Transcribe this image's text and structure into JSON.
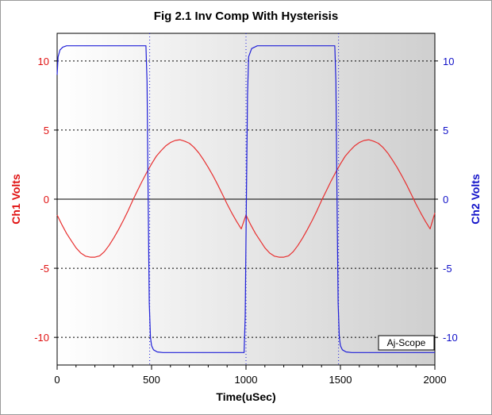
{
  "chart_data": {
    "type": "line",
    "title": "Fig 2.1 Inv Comp With Hysterisis",
    "xlabel": "Time(uSec)",
    "ylabel_left": "Ch1 Volts",
    "ylabel_right": "Ch2 Volts",
    "xlim": [
      0,
      2000
    ],
    "ylim": [
      -12,
      12
    ],
    "x_ticks": [
      0,
      500,
      1000,
      1500,
      2000
    ],
    "y_ticks": [
      10,
      5,
      0,
      -5,
      -10
    ],
    "y_tick_labels_left": [
      "10",
      "5",
      "0",
      "-5",
      "-10"
    ],
    "y_tick_labels_right": [
      "10",
      "5",
      "0",
      "-5",
      "-10"
    ],
    "vertical_markers": [
      490,
      1000,
      1490
    ],
    "grid": "dotted",
    "series": [
      {
        "name": "Ch1",
        "color": "#e83030",
        "x": [
          0,
          25,
          50,
          75,
          100,
          125,
          150,
          175,
          200,
          225,
          250,
          275,
          300,
          325,
          350,
          375,
          400,
          425,
          450,
          475,
          500,
          525,
          550,
          575,
          600,
          625,
          650,
          675,
          700,
          725,
          750,
          775,
          800,
          825,
          850,
          875,
          900,
          925,
          950,
          975,
          1000,
          1025,
          1050,
          1075,
          1100,
          1125,
          1150,
          1175,
          1200,
          1225,
          1250,
          1275,
          1300,
          1325,
          1350,
          1375,
          1400,
          1425,
          1450,
          1475,
          1500,
          1525,
          1550,
          1575,
          1600,
          1625,
          1650,
          1675,
          1700,
          1725,
          1750,
          1775,
          1800,
          1825,
          1850,
          1875,
          1900,
          1925,
          1950,
          1975,
          2000
        ],
        "values": [
          -1.15,
          -1.85,
          -2.48,
          -3.0,
          -3.52,
          -3.9,
          -4.12,
          -4.2,
          -4.2,
          -4.1,
          -3.8,
          -3.35,
          -2.8,
          -2.2,
          -1.55,
          -0.85,
          -0.1,
          0.6,
          1.3,
          1.95,
          2.55,
          3.1,
          3.5,
          3.85,
          4.1,
          4.25,
          4.3,
          4.2,
          4.05,
          3.75,
          3.35,
          2.85,
          2.3,
          1.7,
          1.05,
          0.35,
          -0.35,
          -1.0,
          -1.6,
          -2.15,
          -1.15,
          -1.85,
          -2.48,
          -3.0,
          -3.52,
          -3.9,
          -4.12,
          -4.2,
          -4.2,
          -4.1,
          -3.8,
          -3.35,
          -2.8,
          -2.2,
          -1.55,
          -0.85,
          -0.1,
          0.6,
          1.3,
          1.95,
          2.55,
          3.1,
          3.5,
          3.85,
          4.1,
          4.25,
          4.3,
          4.2,
          4.05,
          3.75,
          3.35,
          2.85,
          2.3,
          1.7,
          1.05,
          0.35,
          -0.35,
          -1.0,
          -1.6,
          -2.15,
          -1.0
        ]
      },
      {
        "name": "Ch2",
        "color": "#2020d8",
        "x": [
          0,
          5,
          15,
          30,
          50,
          100,
          200,
          300,
          400,
          470,
          476,
          482,
          488,
          494,
          500,
          510,
          530,
          560,
          700,
          900,
          990,
          996,
          1002,
          1008,
          1014,
          1030,
          1060,
          1200,
          1400,
          1470,
          1476,
          1482,
          1488,
          1494,
          1500,
          1510,
          1530,
          1560,
          1700,
          1900,
          2000
        ],
        "values": [
          9.0,
          10.3,
          10.8,
          11.0,
          11.1,
          11.1,
          11.1,
          11.1,
          11.1,
          11.1,
          8.5,
          0.0,
          -7.5,
          -10.0,
          -10.6,
          -10.9,
          -11.05,
          -11.1,
          -11.1,
          -11.1,
          -11.1,
          -8.5,
          0.0,
          7.5,
          10.3,
          10.9,
          11.1,
          11.1,
          11.1,
          11.1,
          8.5,
          0.0,
          -7.5,
          -10.0,
          -10.6,
          -10.9,
          -11.05,
          -11.1,
          -11.1,
          -11.1,
          -11.1
        ]
      }
    ]
  },
  "badge": {
    "label": "Aj-Scope"
  }
}
